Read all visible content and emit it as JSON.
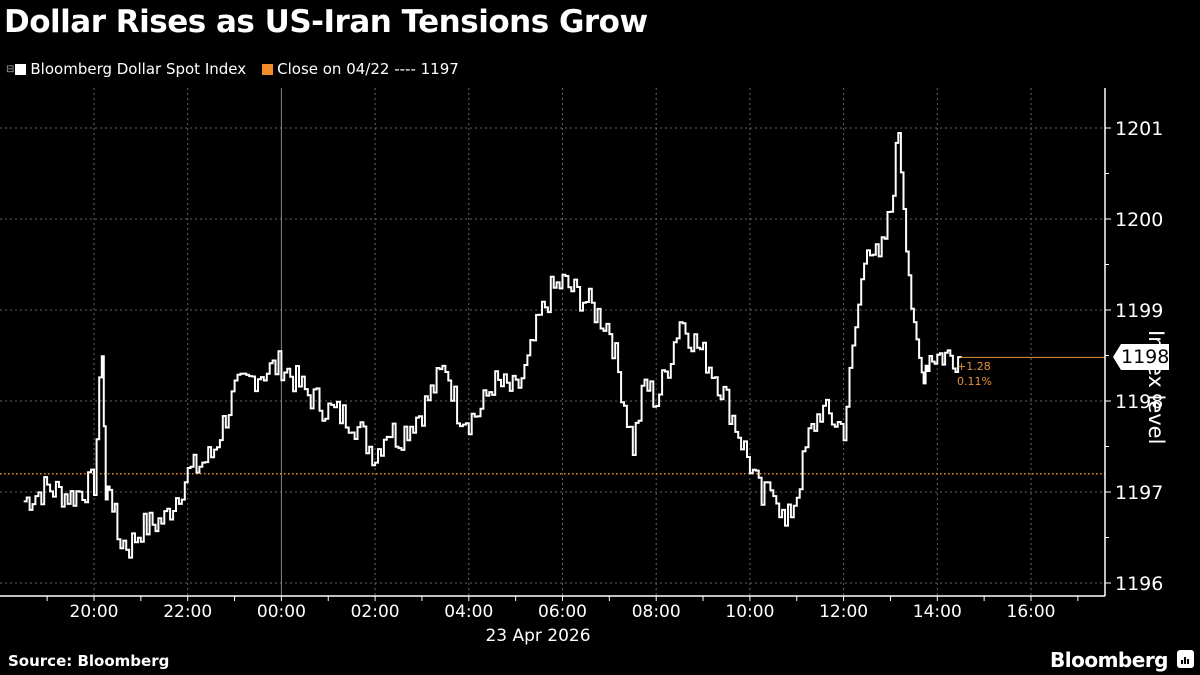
{
  "header": {
    "title": "Dollar Rises as US-Iran Tensions Grow"
  },
  "legend": {
    "items": [
      {
        "label": "Bloomberg Dollar Spot Index",
        "color": "#ffffff"
      },
      {
        "label": "Close on 04/22 ---- 1197",
        "color": "#f28c28"
      }
    ]
  },
  "axis": {
    "y_title": "Index level",
    "y_ticks": [
      "1201",
      "1200",
      "1199",
      "1198",
      "1197",
      "1196"
    ],
    "x_ticks": [
      "20:00",
      "22:00",
      "00:00",
      "02:00",
      "04:00",
      "06:00",
      "08:00",
      "10:00",
      "12:00",
      "14:00",
      "16:00"
    ],
    "x_date": "23 Apr 2026"
  },
  "last_value": {
    "label": "1198",
    "change": "+1.28",
    "change_pct": "0.11%"
  },
  "footer": {
    "source": "Source: Bloomberg",
    "brand": "Bloomberg"
  },
  "chart_data": {
    "type": "line",
    "title": "Dollar Rises as US-Iran Tensions Grow",
    "xlabel": "23 Apr 2026",
    "ylabel": "Index level",
    "ylim": [
      1195.9,
      1201.5
    ],
    "grid": true,
    "legend_position": "top-left",
    "reference_line": {
      "name": "Close on 04/22",
      "value": 1197.2,
      "color": "#f28c28",
      "style": "dotted"
    },
    "series": [
      {
        "name": "Bloomberg Dollar Spot Index",
        "color": "#ffffff",
        "x": [
          "18:30",
          "19:00",
          "19:30",
          "20:00",
          "20:10",
          "20:15",
          "20:20",
          "20:30",
          "20:45",
          "21:00",
          "21:30",
          "22:00",
          "22:30",
          "23:00",
          "23:15",
          "23:30",
          "00:00",
          "00:30",
          "01:00",
          "01:30",
          "02:00",
          "02:15",
          "02:30",
          "03:00",
          "03:30",
          "03:45",
          "04:00",
          "04:15",
          "04:30",
          "05:00",
          "05:15",
          "05:30",
          "05:45",
          "06:00",
          "06:30",
          "07:00",
          "07:30",
          "07:45",
          "08:00",
          "08:15",
          "08:30",
          "09:00",
          "09:15",
          "09:30",
          "10:00",
          "10:15",
          "10:30",
          "10:45",
          "11:00",
          "11:15",
          "11:30",
          "11:45",
          "12:00",
          "12:15",
          "12:30",
          "12:45",
          "13:00",
          "13:10",
          "13:20",
          "13:30",
          "13:40",
          "13:45",
          "13:50",
          "14:00",
          "14:10",
          "14:20",
          "14:30"
        ],
        "values": [
          1196.9,
          1197.05,
          1196.95,
          1197.1,
          1198.6,
          1196.9,
          1197.1,
          1196.5,
          1196.4,
          1196.6,
          1196.7,
          1197.2,
          1197.4,
          1198.1,
          1198.2,
          1198.3,
          1198.4,
          1198.1,
          1197.9,
          1197.8,
          1197.4,
          1197.7,
          1197.6,
          1197.9,
          1198.4,
          1197.9,
          1197.8,
          1197.9,
          1198.2,
          1198.1,
          1198.4,
          1198.9,
          1199.2,
          1199.3,
          1199.1,
          1198.8,
          1197.5,
          1198.2,
          1198.0,
          1198.4,
          1198.9,
          1198.5,
          1198.3,
          1198.0,
          1197.3,
          1196.9,
          1197.1,
          1196.6,
          1197.0,
          1197.6,
          1197.9,
          1197.8,
          1197.7,
          1198.8,
          1199.8,
          1199.5,
          1200.1,
          1201.0,
          1199.8,
          1198.7,
          1198.3,
          1198.4,
          1198.5,
          1198.5,
          1198.5,
          1198.5,
          1198.48
        ]
      }
    ]
  }
}
